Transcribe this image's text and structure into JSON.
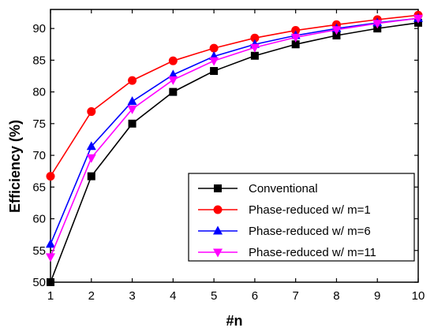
{
  "chart_data": {
    "type": "line",
    "title": "",
    "xlabel": "#n",
    "ylabel": "Efficiency (%)",
    "xlim": [
      1,
      10
    ],
    "ylim": [
      50,
      93
    ],
    "x": [
      1,
      2,
      3,
      4,
      5,
      6,
      7,
      8,
      9,
      10
    ],
    "xticks": [
      "1",
      "2",
      "3",
      "4",
      "5",
      "6",
      "7",
      "8",
      "9",
      "10"
    ],
    "yticks": [
      50,
      55,
      60,
      65,
      70,
      75,
      80,
      85,
      90
    ],
    "ytick_labels": [
      "50",
      "55",
      "60",
      "65",
      "70",
      "75",
      "80",
      "85",
      "90"
    ],
    "grid": false,
    "legend_position": "bottom-right",
    "series": [
      {
        "name": "Conventional",
        "color": "#000000",
        "marker": "square",
        "values": [
          50.0,
          66.7,
          75.0,
          80.0,
          83.3,
          85.7,
          87.5,
          88.9,
          90.0,
          90.9
        ]
      },
      {
        "name": "Phase-reduced w/ m=1",
        "color": "#ff0000",
        "marker": "circle",
        "values": [
          66.7,
          76.9,
          81.8,
          84.9,
          86.9,
          88.5,
          89.7,
          90.6,
          91.4,
          92.1
        ]
      },
      {
        "name": "Phase-reduced w/ m=6",
        "color": "#0000ff",
        "marker": "triangle-up",
        "values": [
          56.0,
          71.4,
          78.5,
          82.7,
          85.6,
          87.5,
          88.9,
          90.0,
          90.9,
          91.6
        ]
      },
      {
        "name": "Phase-reduced w/ m=11",
        "color": "#ff00ff",
        "marker": "triangle-down",
        "values": [
          54.0,
          69.6,
          77.3,
          81.9,
          84.9,
          87.0,
          88.6,
          89.8,
          90.8,
          91.6
        ]
      }
    ]
  }
}
